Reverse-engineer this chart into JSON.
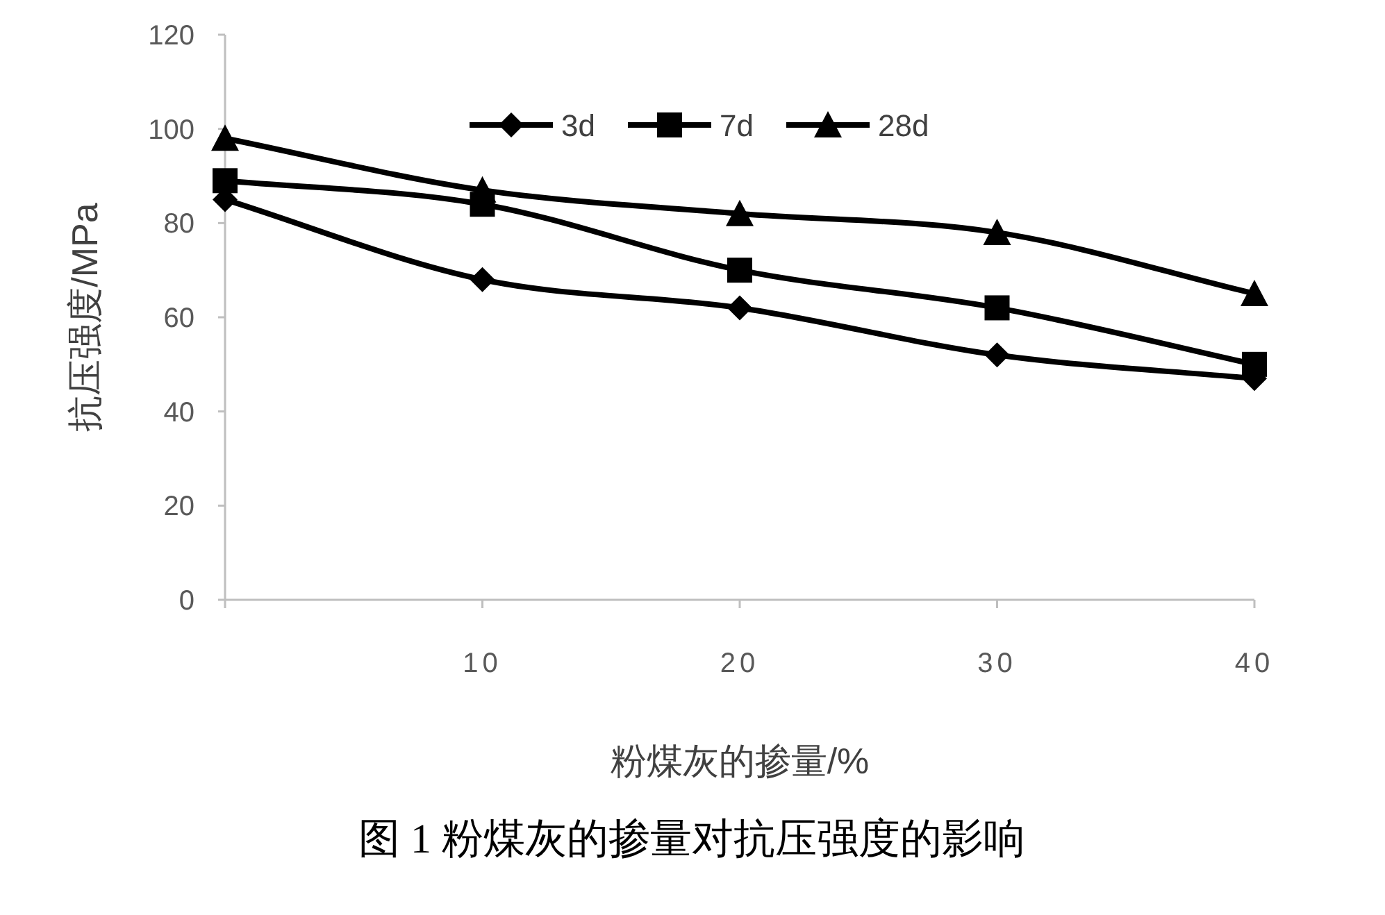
{
  "chart_data": {
    "type": "line",
    "title": "图 1 粉煤灰的掺量对抗压强度的影响",
    "xlabel": "粉煤灰的掺量/%",
    "ylabel": "抗压强度/MPa",
    "x": [
      0,
      10,
      20,
      30,
      40
    ],
    "series": [
      {
        "name": "3d",
        "color": "#000000",
        "marker": "diamond",
        "values": [
          85,
          68,
          62,
          52,
          47
        ]
      },
      {
        "name": "7d",
        "color": "#000000",
        "marker": "square",
        "values": [
          89,
          84,
          70,
          62,
          50
        ]
      },
      {
        "name": "28d",
        "color": "#000000",
        "marker": "triangle",
        "values": [
          98,
          87,
          82,
          78,
          65
        ]
      }
    ],
    "xlim": [
      0,
      40
    ],
    "xticks": [
      {
        "value": 0,
        "label": null
      },
      10,
      20,
      30,
      40
    ],
    "ylim": [
      0,
      120
    ],
    "yticks": [
      0,
      20,
      40,
      60,
      80,
      100,
      120
    ],
    "grid": false,
    "legend": "top",
    "line_style": "solid"
  }
}
